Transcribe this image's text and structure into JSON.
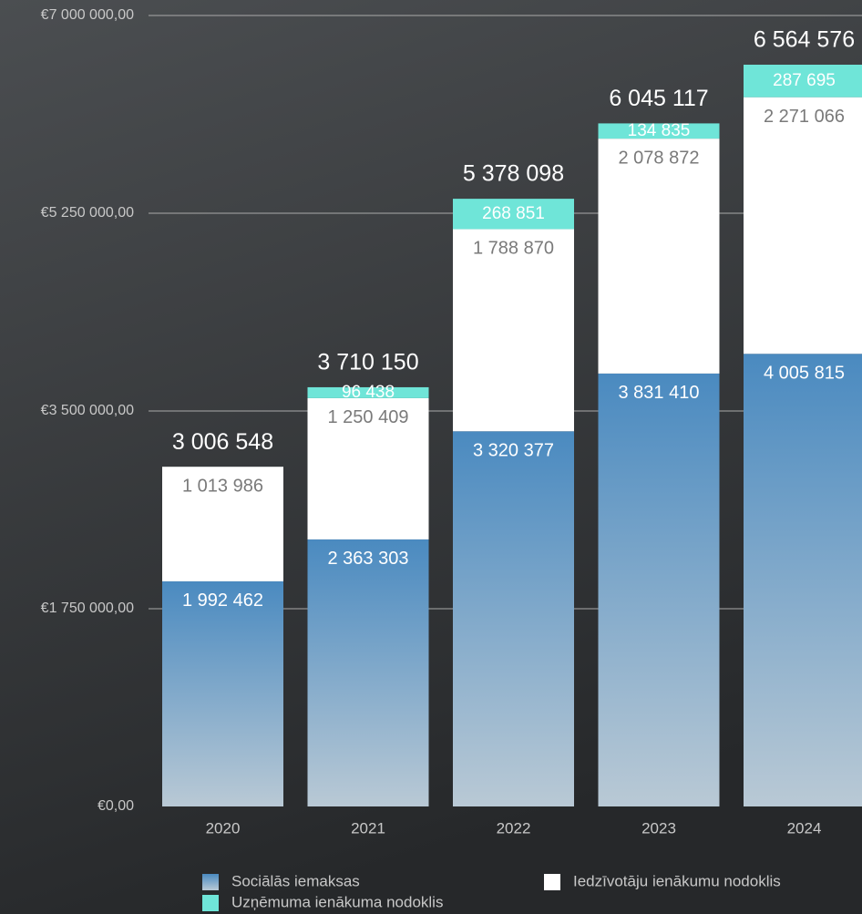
{
  "chart_data": {
    "type": "stacked_bar",
    "categories": [
      "2020",
      "2021",
      "2022",
      "2023",
      "2024"
    ],
    "series": [
      {
        "name": "Sociālās iemaksas",
        "color": "#4a8ac0",
        "values": [
          1992462,
          2363303,
          3320377,
          3831410,
          4005815
        ],
        "value_labels": [
          "1 992 462",
          "2 363 303",
          "3 320 377",
          "3 831 410",
          "4 005 815"
        ]
      },
      {
        "name": "Iedzīvotāju ienākumu nodoklis",
        "color": "#ffffff",
        "values": [
          1013986,
          1250409,
          1788870,
          2078872,
          2271066
        ],
        "value_labels": [
          "1 013 986",
          "1 250 409",
          "1 788 870",
          "2 078 872",
          "2 271 066"
        ]
      },
      {
        "name": "Uzņēmuma ienākuma nodoklis",
        "color": "#6fe5d8",
        "values": [
          100,
          96438,
          268851,
          134835,
          287695
        ],
        "value_labels": [
          null,
          "96 438",
          "268 851",
          "134 835",
          "287 695"
        ]
      }
    ],
    "totals": [
      3006548,
      3710150,
      5378098,
      6045117,
      6564576
    ],
    "total_labels": [
      "3 006 548",
      "3 710 150",
      "5 378 098",
      "6 045 117",
      "6 564 576"
    ],
    "ylim": [
      0,
      7000000
    ],
    "yticks": [
      {
        "value": 0,
        "label": "€0,00"
      },
      {
        "value": 1750000,
        "label": "€1 750 000,00"
      },
      {
        "value": 3500000,
        "label": "€3 500 000,00"
      },
      {
        "value": 5250000,
        "label": "€5 250 000,00"
      },
      {
        "value": 7000000,
        "label": "€7 000 000,00"
      }
    ],
    "grid": true
  }
}
